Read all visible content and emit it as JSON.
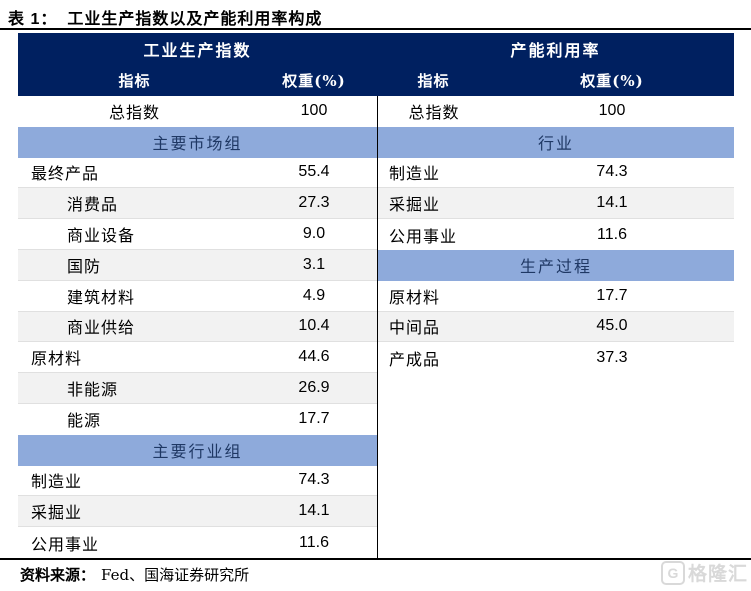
{
  "title": {
    "prefix": "表 1：",
    "text": "工业生产指数以及产能利用率构成"
  },
  "colors": {
    "header_bg": "#002060",
    "band_bg": "#8EAADB",
    "band_text": "#1F3864",
    "shaded_row": "#F2F2F2",
    "rule": "#000000",
    "grid_line": "#E0E0E0"
  },
  "table": {
    "left": {
      "title": "工业生产指数",
      "columns": {
        "indicator": "指标",
        "weight": "权重(%)"
      },
      "rows": [
        {
          "type": "total",
          "label": "总指数",
          "value": "100",
          "shaded": false,
          "indent": false,
          "line": false
        },
        {
          "type": "band",
          "label": "主要市场组"
        },
        {
          "type": "data",
          "label": "最终产品",
          "value": "55.4",
          "shaded": false,
          "indent": false,
          "line": true
        },
        {
          "type": "data",
          "label": "消费品",
          "value": "27.3",
          "shaded": true,
          "indent": true,
          "line": true
        },
        {
          "type": "data",
          "label": "商业设备",
          "value": "9.0",
          "shaded": false,
          "indent": true,
          "line": true
        },
        {
          "type": "data",
          "label": "国防",
          "value": "3.1",
          "shaded": true,
          "indent": true,
          "line": true
        },
        {
          "type": "data",
          "label": "建筑材料",
          "value": "4.9",
          "shaded": false,
          "indent": true,
          "line": true
        },
        {
          "type": "data",
          "label": "商业供给",
          "value": "10.4",
          "shaded": true,
          "indent": true,
          "line": true
        },
        {
          "type": "data",
          "label": "原材料",
          "value": "44.6",
          "shaded": false,
          "indent": false,
          "line": true
        },
        {
          "type": "data",
          "label": "非能源",
          "value": "26.9",
          "shaded": true,
          "indent": true,
          "line": true
        },
        {
          "type": "data",
          "label": "能源",
          "value": "17.7",
          "shaded": false,
          "indent": true,
          "line": false
        },
        {
          "type": "band",
          "label": "主要行业组"
        },
        {
          "type": "data",
          "label": "制造业",
          "value": "74.3",
          "shaded": false,
          "indent": false,
          "line": true
        },
        {
          "type": "data",
          "label": "采掘业",
          "value": "14.1",
          "shaded": true,
          "indent": false,
          "line": true
        },
        {
          "type": "data",
          "label": "公用事业",
          "value": "11.6",
          "shaded": false,
          "indent": false,
          "line": false
        }
      ]
    },
    "right": {
      "title": "产能利用率",
      "columns": {
        "indicator": "指标",
        "weight": "权重(%)"
      },
      "rows": [
        {
          "type": "total",
          "label": "总指数",
          "value": "100",
          "shaded": false,
          "indent": false,
          "line": false
        },
        {
          "type": "band",
          "label": "行业"
        },
        {
          "type": "data",
          "label": "制造业",
          "value": "74.3",
          "shaded": false,
          "indent": false,
          "line": true
        },
        {
          "type": "data",
          "label": "采掘业",
          "value": "14.1",
          "shaded": true,
          "indent": false,
          "line": true
        },
        {
          "type": "data",
          "label": "公用事业",
          "value": "11.6",
          "shaded": false,
          "indent": false,
          "line": false
        },
        {
          "type": "band",
          "label": "生产过程"
        },
        {
          "type": "data",
          "label": "原材料",
          "value": "17.7",
          "shaded": false,
          "indent": false,
          "line": true
        },
        {
          "type": "data",
          "label": "中间品",
          "value": "45.0",
          "shaded": true,
          "indent": false,
          "line": true
        },
        {
          "type": "data",
          "label": "产成品",
          "value": "37.3",
          "shaded": false,
          "indent": false,
          "line": false
        }
      ]
    }
  },
  "source": {
    "label": "资料来源：",
    "text": "Fed、国海证券研究所"
  },
  "watermark": {
    "icon_letter": "G",
    "text": "格隆汇"
  }
}
